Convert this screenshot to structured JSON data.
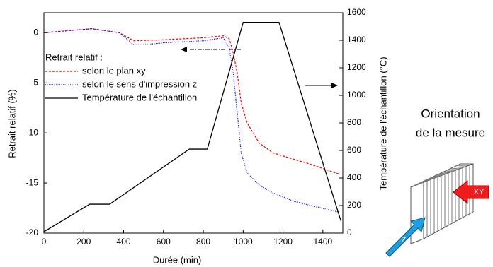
{
  "chart_data": {
    "type": "line",
    "xlabel": "Durée (min)",
    "ylabel": "Retrait relatif (%)",
    "y2label": "Température de l'échantillon (°C)",
    "legend_title": "Retrait relatif :",
    "xlim": [
      0,
      1500
    ],
    "xticks": [
      0,
      200,
      400,
      600,
      800,
      1000,
      1200,
      1400
    ],
    "ylim": [
      -20,
      2
    ],
    "yticks": [
      -20,
      -15,
      -10,
      -5,
      0
    ],
    "y2lim": [
      0,
      1600
    ],
    "y2ticks": [
      0,
      200,
      400,
      600,
      800,
      1000,
      1200,
      1400,
      1600
    ],
    "series": [
      {
        "name": "selon le plan xy",
        "color": "#ff0000",
        "dash": "3,2",
        "x": [
          0,
          240,
          380,
          450,
          600,
          800,
          900,
          930,
          950,
          970,
          990,
          1020,
          1080,
          1150,
          1250,
          1350,
          1480
        ],
        "values": [
          0,
          0.4,
          0,
          -0.8,
          -0.7,
          -0.5,
          -0.3,
          -0.6,
          -2,
          -4,
          -7,
          -9,
          -11,
          -12,
          -12.6,
          -13.2,
          -14.1
        ]
      },
      {
        "name": "selon le sens d'impression z",
        "color": "#0000ff",
        "dash": "1,1.5",
        "x": [
          0,
          240,
          380,
          450,
          500,
          600,
          800,
          900,
          930,
          950,
          970,
          990,
          1020,
          1080,
          1150,
          1250,
          1350,
          1480
        ],
        "values": [
          0,
          0.4,
          0,
          -1.2,
          -1.2,
          -1,
          -0.8,
          -0.5,
          -1.5,
          -4,
          -8,
          -12,
          -14,
          -15.2,
          -16,
          -16.8,
          -17.3,
          -17.9
        ]
      },
      {
        "name": "Température de l'échantillon",
        "color": "#000000",
        "dash": "",
        "axis": "y2",
        "x": [
          0,
          230,
          330,
          730,
          820,
          1000,
          1180,
          1490
        ],
        "values": [
          10,
          210,
          210,
          610,
          610,
          1530,
          1530,
          90
        ]
      }
    ],
    "annotations": [
      "Orientation",
      "de la mesure"
    ],
    "diagram_labels": [
      "XY",
      "Z"
    ]
  }
}
